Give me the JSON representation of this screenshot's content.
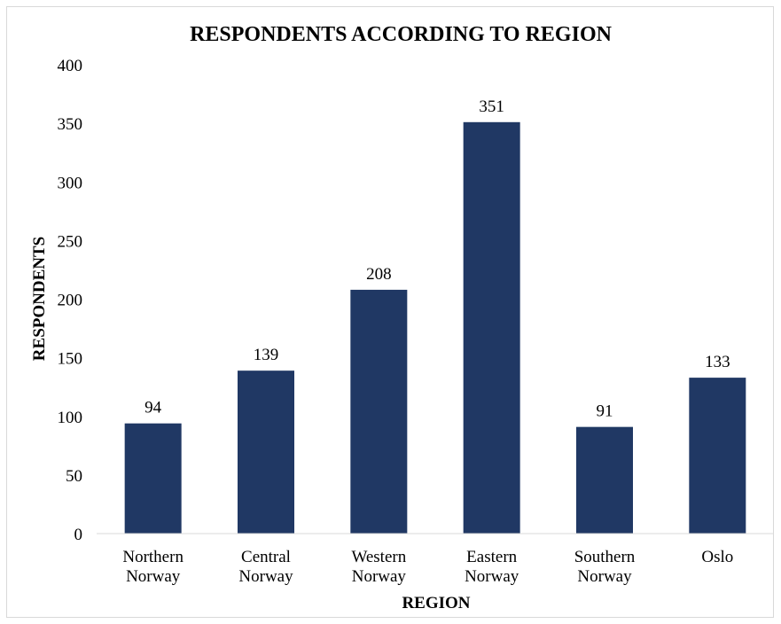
{
  "chart_data": {
    "type": "bar",
    "title": "RESPONDENTS ACCORDING TO REGION",
    "xlabel": "REGION",
    "ylabel": "RESPONDENTS",
    "categories": [
      [
        "Northern",
        "Norway"
      ],
      [
        "Central",
        "Norway"
      ],
      [
        "Western",
        "Norway"
      ],
      [
        "Eastern",
        "Norway"
      ],
      [
        "Southern",
        "Norway"
      ],
      [
        "Oslo"
      ]
    ],
    "values": [
      94,
      139,
      208,
      351,
      91,
      133
    ],
    "ylim": [
      0,
      400
    ],
    "yticks": [
      0,
      50,
      100,
      150,
      200,
      250,
      300,
      350,
      400
    ],
    "grid": false,
    "legend": "none",
    "bar_color": "#203864",
    "data_labels": true
  }
}
